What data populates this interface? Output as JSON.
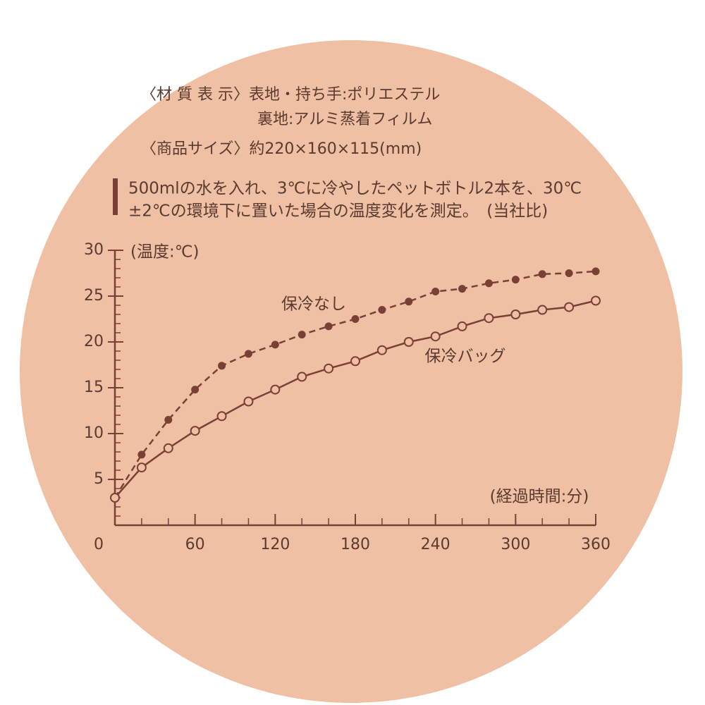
{
  "header": {
    "material": "〈材 質 表 示〉表地・持ち手:ポリエステル",
    "lining": "裏地:アルミ蒸着フィルム",
    "size": "〈商品サイズ〉約220×160×115(mm)",
    "note": [
      "500mlの水を入れ、3℃に冷やしたペットボトル2本を、30℃",
      "±2℃の環境下に置いた場合の温度変化を測定。　(当社比)"
    ]
  },
  "chart_data": {
    "type": "line",
    "ylabel": "(温度:℃)",
    "xlabel": "(経過時間:分)",
    "x": [
      0,
      20,
      40,
      60,
      80,
      100,
      120,
      140,
      160,
      180,
      200,
      220,
      240,
      260,
      280,
      300,
      320,
      340,
      360
    ],
    "series": [
      {
        "name": "保冷なし",
        "color": "#7a4036",
        "dashed": true,
        "marker": "filled",
        "values": [
          3,
          7.7,
          11.5,
          14.8,
          17.4,
          18.7,
          19.7,
          20.8,
          21.7,
          22.5,
          23.5,
          24.4,
          25.5,
          25.8,
          26.4,
          26.8,
          27.4,
          27.5,
          27.7
        ]
      },
      {
        "name": "保冷バッグ",
        "color": "#7a4036",
        "dashed": false,
        "marker": "open",
        "values": [
          3,
          6.3,
          8.4,
          10.3,
          11.9,
          13.5,
          14.8,
          16.2,
          17.1,
          17.9,
          19.1,
          20,
          20.6,
          21.7,
          22.6,
          23,
          23.5,
          23.8,
          24.5
        ]
      }
    ],
    "xlim": [
      0,
      360
    ],
    "ylim": [
      0,
      30
    ],
    "xticks": [
      0,
      60,
      120,
      180,
      240,
      300,
      360
    ],
    "yticks": [
      5,
      10,
      15,
      20,
      25,
      30
    ],
    "xminor": 20,
    "yminor": 1
  }
}
